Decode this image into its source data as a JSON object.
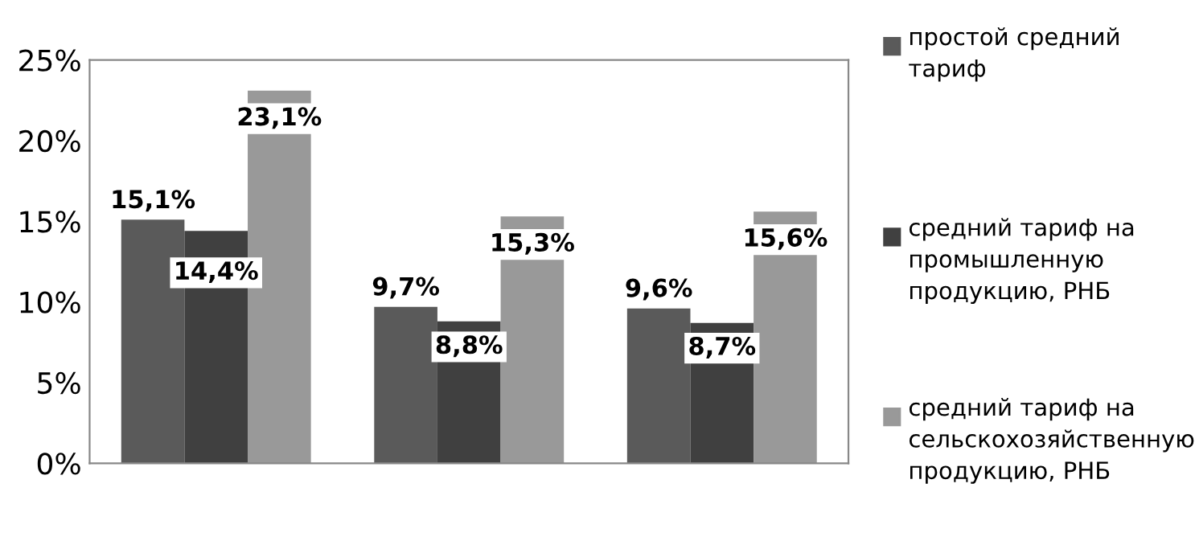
{
  "chart_data": {
    "type": "bar",
    "categories": [
      null,
      null,
      null
    ],
    "series": [
      {
        "name": "простой средний тариф",
        "color": "#5a5a5a",
        "values": [
          15.1,
          9.7,
          9.6
        ],
        "value_labels": [
          "15,1%",
          "9,7%",
          "9,6%"
        ]
      },
      {
        "name": "средний тариф на промышленную продукцию, РНБ",
        "color": "#404040",
        "values": [
          14.4,
          8.8,
          8.7
        ],
        "value_labels": [
          "14,4%",
          "8,8%",
          "8,7%"
        ]
      },
      {
        "name": "средний тариф на сельскохозяйственную продукцию, РНБ",
        "color": "#999999",
        "values": [
          23.1,
          15.3,
          15.6
        ],
        "value_labels": [
          "23,1%",
          "15,3%",
          "15,6%"
        ]
      }
    ],
    "ylim": [
      0,
      25
    ],
    "yticks": [
      {
        "value": 0,
        "label": "0%"
      },
      {
        "value": 5,
        "label": "5%"
      },
      {
        "value": 10,
        "label": "10%"
      },
      {
        "value": 15,
        "label": "15%"
      },
      {
        "value": 20,
        "label": "20%"
      },
      {
        "value": 25,
        "label": "25%"
      }
    ],
    "grid": false,
    "legend": "right"
  }
}
